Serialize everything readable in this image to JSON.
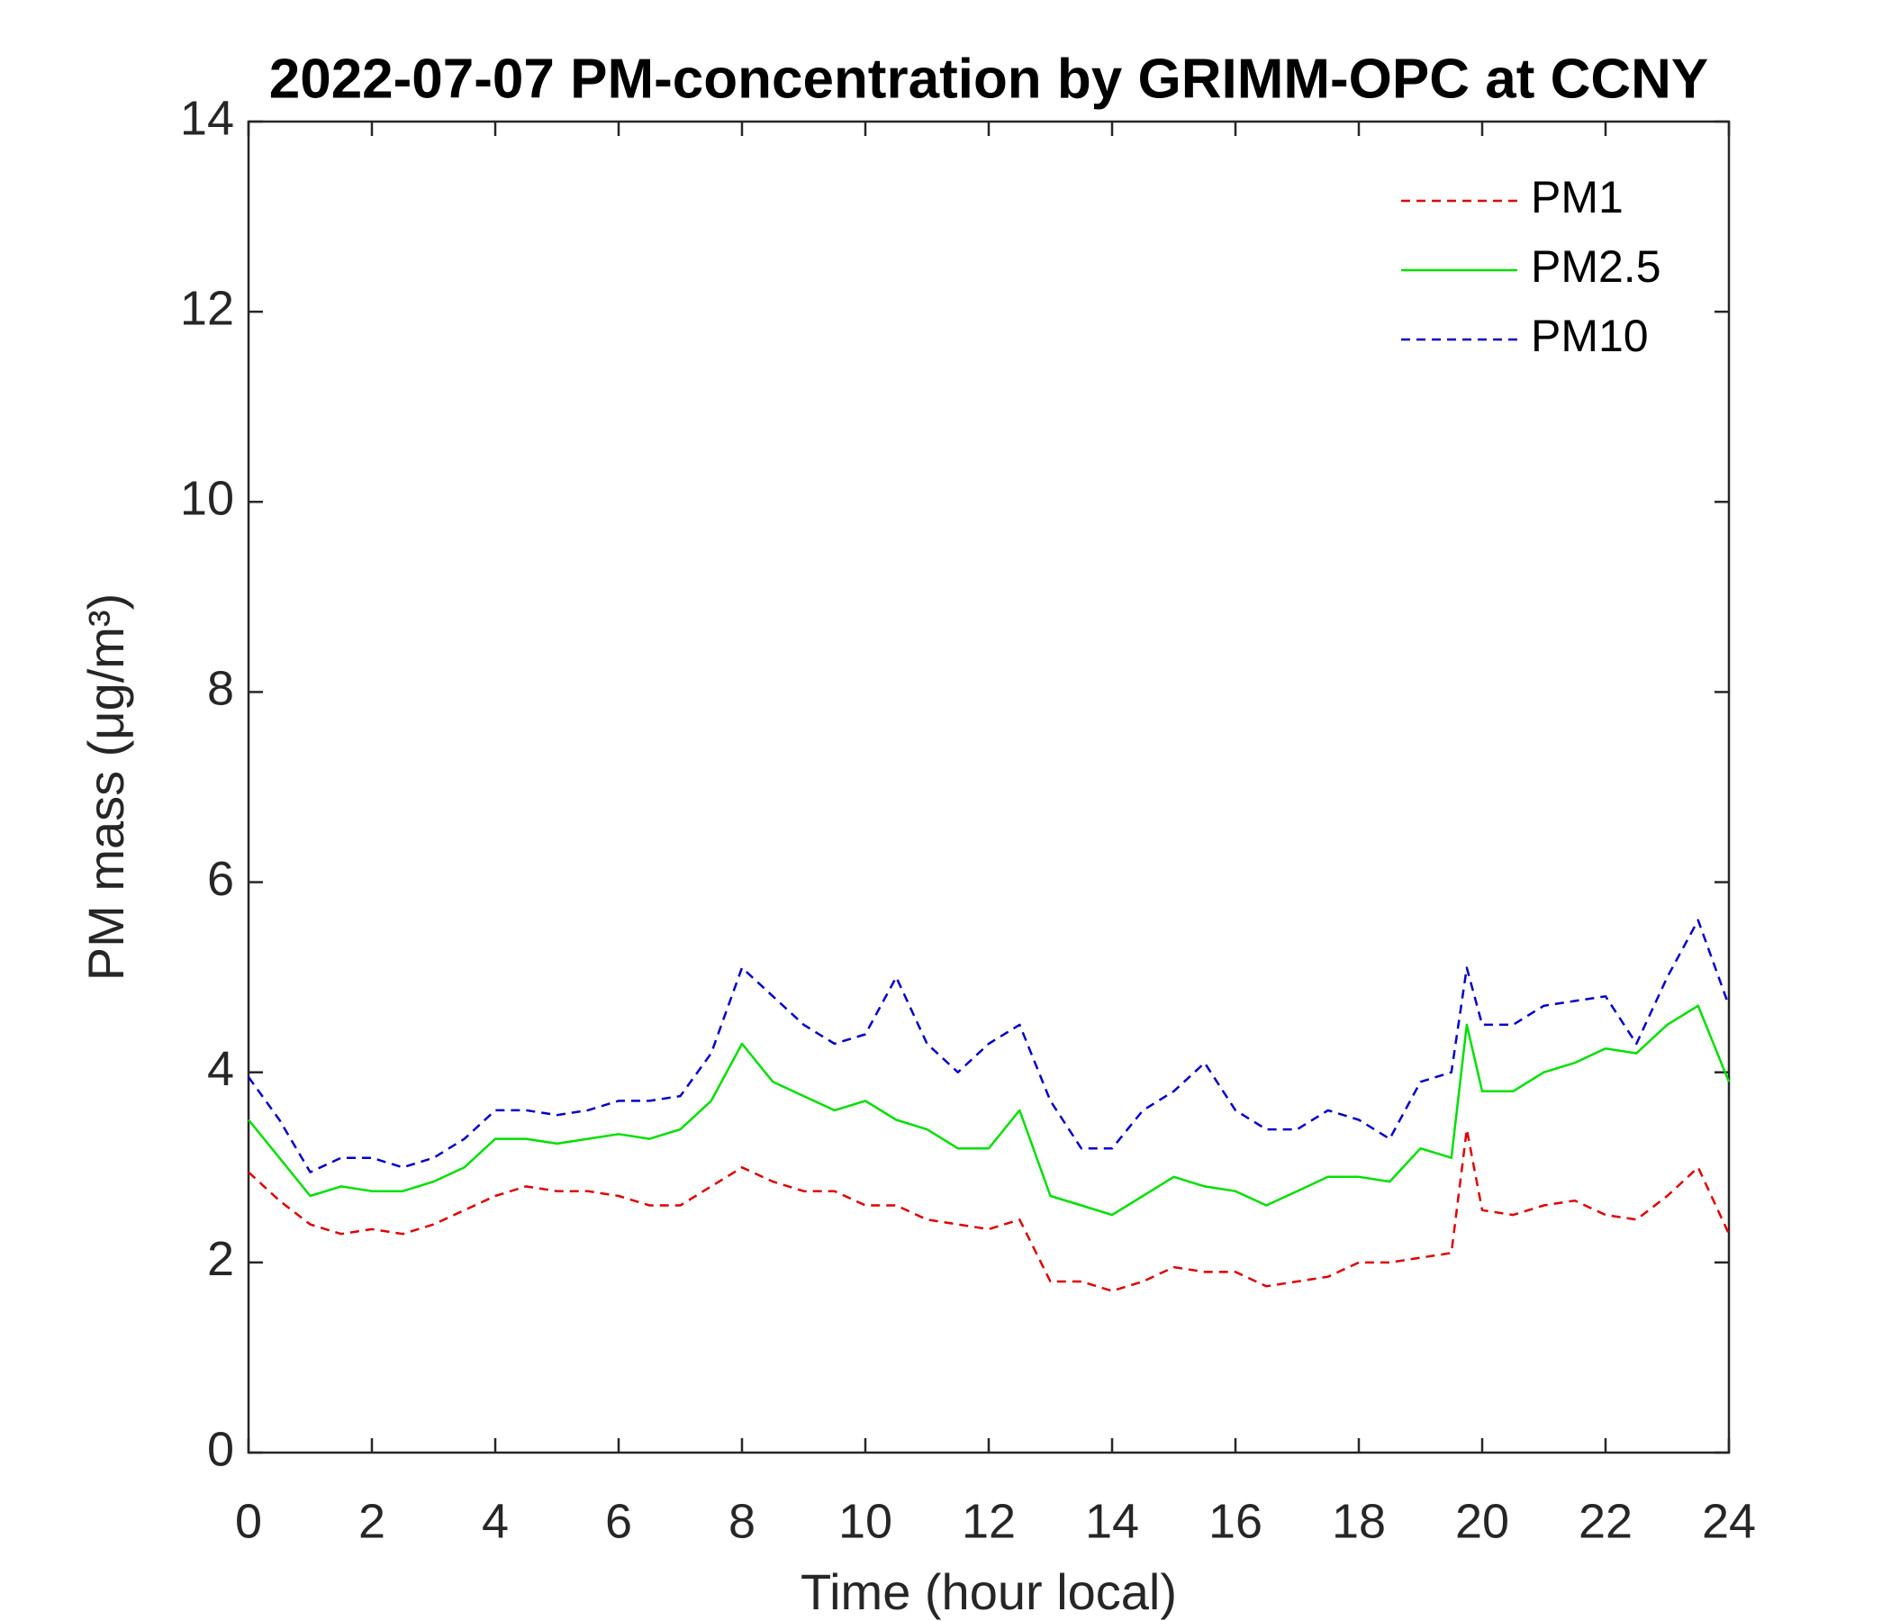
{
  "chart_data": {
    "type": "line",
    "title": "2022-07-07 PM-concentration by GRIMM-OPC at CCNY",
    "xlabel": "Time (hour local)",
    "ylabel": "PM mass (μg/m³)",
    "x": [
      0,
      0.5,
      1,
      1.5,
      2,
      2.5,
      3,
      3.5,
      4,
      4.5,
      5,
      5.5,
      6,
      6.5,
      7,
      7.5,
      8,
      8.5,
      9,
      9.5,
      10,
      10.5,
      11,
      11.5,
      12,
      12.5,
      13,
      13.5,
      14,
      14.5,
      15,
      15.5,
      16,
      16.5,
      17,
      17.5,
      18,
      18.5,
      19,
      19.5,
      19.75,
      20,
      20.5,
      21,
      21.5,
      22,
      22.5,
      23,
      23.5,
      24
    ],
    "series": [
      {
        "name": "PM1",
        "color": "#e00000",
        "linestyle": "dashed",
        "values": [
          2.95,
          2.65,
          2.4,
          2.3,
          2.35,
          2.3,
          2.4,
          2.55,
          2.7,
          2.8,
          2.75,
          2.75,
          2.7,
          2.6,
          2.6,
          2.8,
          3.0,
          2.85,
          2.75,
          2.75,
          2.6,
          2.6,
          2.45,
          2.4,
          2.35,
          2.45,
          1.8,
          1.8,
          1.7,
          1.8,
          1.95,
          1.9,
          1.9,
          1.75,
          1.8,
          1.85,
          2.0,
          2.0,
          2.05,
          2.1,
          3.4,
          2.55,
          2.5,
          2.6,
          2.65,
          2.5,
          2.45,
          2.7,
          3.0,
          2.3
        ]
      },
      {
        "name": "PM2.5",
        "color": "#00e000",
        "linestyle": "solid",
        "values": [
          3.5,
          3.1,
          2.7,
          2.8,
          2.75,
          2.75,
          2.85,
          3.0,
          3.3,
          3.3,
          3.25,
          3.3,
          3.35,
          3.3,
          3.4,
          3.7,
          4.3,
          3.9,
          3.75,
          3.6,
          3.7,
          3.5,
          3.4,
          3.2,
          3.2,
          3.6,
          2.7,
          2.6,
          2.5,
          2.7,
          2.9,
          2.8,
          2.75,
          2.6,
          2.75,
          2.9,
          2.9,
          2.85,
          3.2,
          3.1,
          4.5,
          3.8,
          3.8,
          4.0,
          4.1,
          4.25,
          4.2,
          4.5,
          4.7,
          3.9
        ]
      },
      {
        "name": "PM10",
        "color": "#0000cc",
        "linestyle": "dashed",
        "values": [
          3.95,
          3.5,
          2.95,
          3.1,
          3.1,
          3.0,
          3.1,
          3.3,
          3.6,
          3.6,
          3.55,
          3.6,
          3.7,
          3.7,
          3.75,
          4.2,
          5.1,
          4.8,
          4.5,
          4.3,
          4.4,
          5.0,
          4.3,
          4.0,
          4.3,
          4.5,
          3.7,
          3.2,
          3.2,
          3.6,
          3.8,
          4.1,
          3.6,
          3.4,
          3.4,
          3.6,
          3.5,
          3.3,
          3.9,
          4.0,
          5.1,
          4.5,
          4.5,
          4.7,
          4.75,
          4.8,
          4.3,
          5.0,
          5.6,
          4.7
        ]
      }
    ],
    "xlim": [
      0,
      24
    ],
    "xticks": [
      0,
      2,
      4,
      6,
      8,
      10,
      12,
      14,
      16,
      18,
      20,
      22,
      24
    ],
    "ylim": [
      0,
      14
    ],
    "yticks": [
      0,
      2,
      4,
      6,
      8,
      10,
      12,
      14
    ],
    "legend": "upper right"
  }
}
